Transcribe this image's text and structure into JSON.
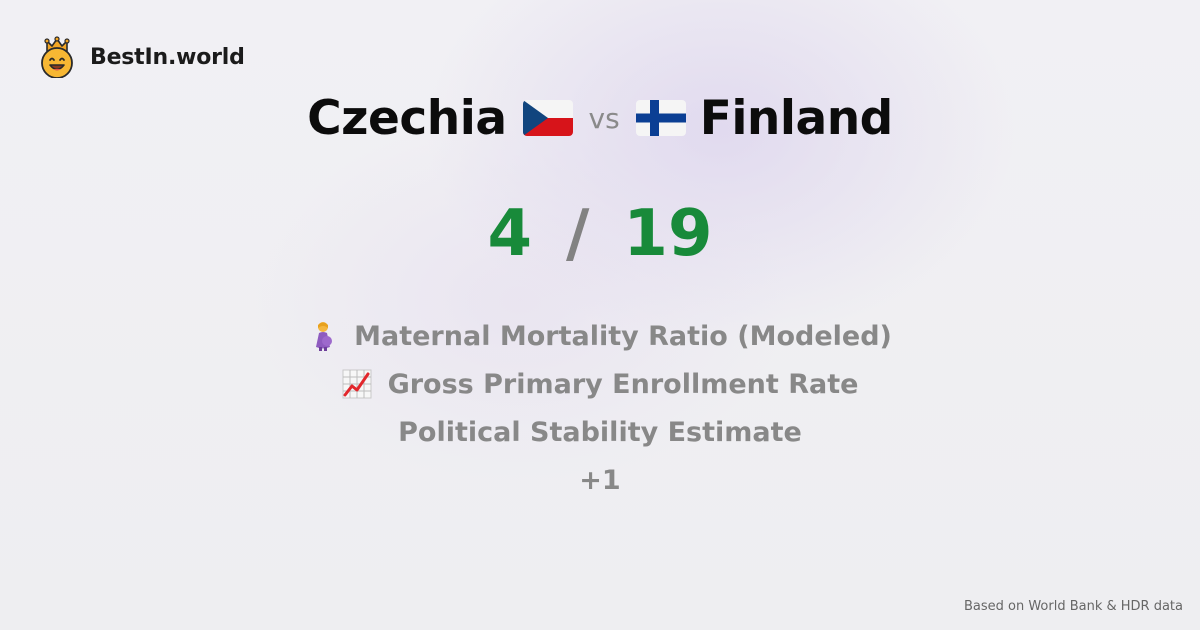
{
  "brand": {
    "name": "BestIn.world",
    "logo_icon": "smiling-crown-face-icon"
  },
  "comparison": {
    "country_a": "Czechia",
    "country_a_flag": "czechia-flag-icon",
    "vs_label": "vs",
    "country_b": "Finland",
    "country_b_flag": "finland-flag-icon"
  },
  "score": {
    "a": "4",
    "separator": "/",
    "b": "19",
    "color": "#188a3a"
  },
  "metrics": [
    {
      "label": "Maternal Mortality Ratio (Modeled)",
      "icon": "pregnant-woman-icon"
    },
    {
      "label": "Gross Primary Enrollment Rate",
      "icon": "chart-increasing-icon"
    },
    {
      "label": "Political Stability Estimate",
      "icon": ""
    }
  ],
  "more_label": "+1",
  "source_note": "Based on World Bank & HDR data"
}
